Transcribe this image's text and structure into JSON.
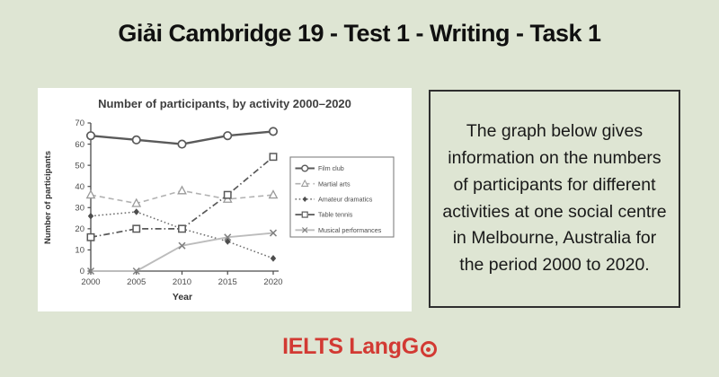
{
  "page": {
    "background_color": "#dee5d3",
    "title": "Giải Cambridge 19 - Test 1 - Writing - Task 1"
  },
  "task_box": {
    "text": "The graph below gives information on the numbers of participants for different activities at one social centre in Melbourne, Australia for the period 2000 to 2020.",
    "border_color": "#2e2e2e"
  },
  "footer": {
    "brand": "IELTS LangGo",
    "brand_prefix": "IELTS LangG",
    "brand_color": "#d23a33"
  },
  "chart_data": {
    "type": "line",
    "title": "Number of participants, by activity 2000–2020",
    "xlabel": "Year",
    "ylabel": "Number of participants",
    "categories": [
      "2000",
      "2005",
      "2010",
      "2015",
      "2020"
    ],
    "ylim": [
      0,
      70
    ],
    "ytick_step": 10,
    "grid": false,
    "legend_position": "right",
    "series": [
      {
        "name": "Film club",
        "values": [
          64,
          62,
          60,
          64,
          66
        ],
        "marker": "circle",
        "line": "solid",
        "color": "#5a5a5a",
        "marker_color": "#5a5a5a",
        "width": 2.4
      },
      {
        "name": "Martial arts",
        "values": [
          36,
          32,
          38,
          34,
          36
        ],
        "marker": "triangle",
        "line": "dashed",
        "color": "#b2b2b2",
        "marker_color": "#9a9a9a",
        "width": 1.6
      },
      {
        "name": "Amateur dramatics",
        "values": [
          26,
          28,
          20,
          14,
          6
        ],
        "marker": "diamond",
        "line": "dotted",
        "color": "#6c6c6c",
        "marker_color": "#4d4d4d",
        "width": 1.5
      },
      {
        "name": "Table tennis",
        "values": [
          16,
          20,
          20,
          36,
          54
        ],
        "marker": "square",
        "line": "dashdot",
        "color": "#585858",
        "marker_color": "#585858",
        "width": 1.7
      },
      {
        "name": "Musical performances",
        "values": [
          0,
          0,
          12,
          16,
          18
        ],
        "marker": "x",
        "line": "solid",
        "color": "#bcbcbc",
        "marker_color": "#808080",
        "width": 1.9
      }
    ]
  }
}
